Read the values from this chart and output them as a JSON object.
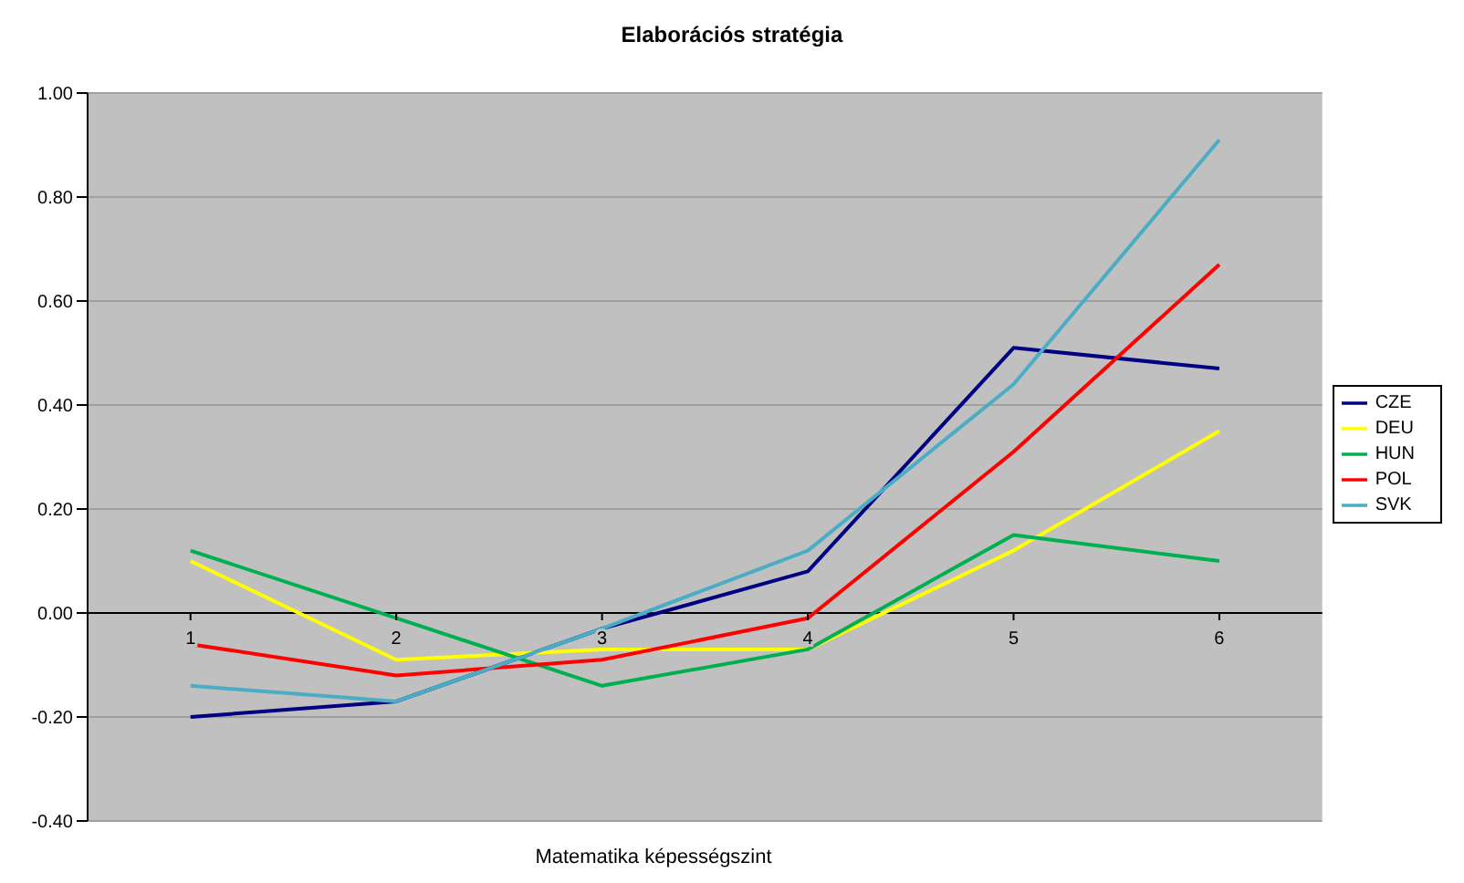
{
  "chart_data": {
    "type": "line",
    "title": "Elaborációs stratégia",
    "xlabel": "Matematika képességszint",
    "categories": [
      "1",
      "2",
      "3",
      "4",
      "5",
      "6"
    ],
    "series": [
      {
        "name": "CZE",
        "color": "#000080",
        "values": [
          -0.2,
          -0.17,
          -0.03,
          0.08,
          0.51,
          0.47
        ]
      },
      {
        "name": "DEU",
        "color": "#ffff00",
        "values": [
          0.1,
          -0.09,
          -0.07,
          -0.07,
          0.12,
          0.35
        ]
      },
      {
        "name": "HUN",
        "color": "#00b050",
        "values": [
          0.12,
          -0.01,
          -0.14,
          -0.07,
          0.15,
          0.1
        ]
      },
      {
        "name": "POL",
        "color": "#ff0000",
        "values": [
          -0.06,
          -0.12,
          -0.09,
          -0.01,
          0.31,
          0.67
        ]
      },
      {
        "name": "SVK",
        "color": "#4bacc6",
        "values": [
          -0.14,
          -0.17,
          -0.03,
          0.12,
          0.44,
          0.91
        ]
      }
    ],
    "ylim": [
      -0.4,
      1.0
    ],
    "yticks": [
      {
        "value": -0.4,
        "label": "-0.40"
      },
      {
        "value": -0.2,
        "label": "-0.20"
      },
      {
        "value": 0,
        "label": "0.00"
      },
      {
        "value": 0.2,
        "label": "0.20"
      },
      {
        "value": 0.4,
        "label": "0.40"
      },
      {
        "value": 0.6,
        "label": "0.60"
      },
      {
        "value": 0.8,
        "label": "0.80"
      },
      {
        "value": 1.0,
        "label": "1.00"
      }
    ],
    "grid": "y",
    "legend": "right",
    "marker": "none",
    "line_style": "solid"
  }
}
